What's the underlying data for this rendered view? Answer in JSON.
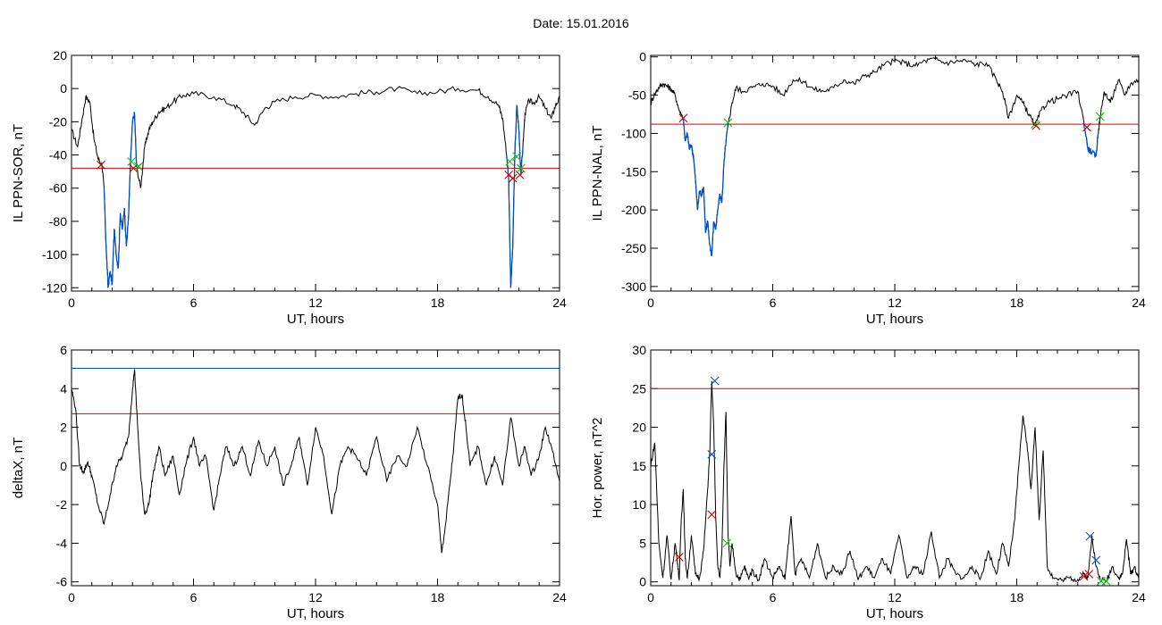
{
  "figure": {
    "date_label": "Date:",
    "date_value": "15.01.2016"
  },
  "colors": {
    "trace": "#000000",
    "threshold": "#e00000",
    "highlight": "#0050c8",
    "marker_red": "#d00000",
    "marker_green": "#10c010",
    "marker_blue": "#0050c8"
  },
  "chart_data": [
    {
      "id": "sor",
      "type": "line",
      "xlabel": "UT, hours",
      "ylabel": "IL PPN-SOR, nT",
      "xlim": [
        0,
        24
      ],
      "ylim": [
        -122,
        20
      ],
      "xticks": [
        0,
        6,
        12,
        18,
        24
      ],
      "yticks": [
        20,
        0,
        -20,
        -40,
        -60,
        -80,
        -100,
        -120
      ],
      "threshold": -48,
      "series": {
        "x": [
          0,
          0.3,
          0.5,
          0.7,
          0.9,
          1.1,
          1.3,
          1.5,
          1.6,
          1.7,
          1.8,
          1.9,
          2.0,
          2.1,
          2.2,
          2.3,
          2.4,
          2.5,
          2.6,
          2.7,
          2.8,
          2.9,
          3.0,
          3.1,
          3.2,
          3.4,
          3.6,
          3.8,
          4.0,
          4.3,
          4.6,
          5.0,
          5.5,
          6.0,
          7.0,
          8.0,
          8.5,
          9.0,
          9.5,
          10.0,
          11.0,
          12.0,
          13.0,
          14.0,
          15.0,
          16.0,
          17.0,
          18.0,
          19.0,
          20.0,
          20.5,
          21.0,
          21.2,
          21.4,
          21.5,
          21.6,
          21.7,
          21.8,
          21.9,
          22.0,
          22.1,
          22.2,
          22.3,
          22.5,
          22.7,
          23.0,
          23.3,
          23.6,
          23.8,
          24.0
        ],
        "y": [
          -25,
          -35,
          -20,
          -5,
          -8,
          -30,
          -42,
          -46,
          -60,
          -95,
          -120,
          -110,
          -118,
          -85,
          -100,
          -108,
          -75,
          -85,
          -72,
          -95,
          -78,
          -45,
          -20,
          -15,
          -47,
          -60,
          -35,
          -25,
          -20,
          -14,
          -12,
          -8,
          -4,
          -3,
          -5,
          -10,
          -15,
          -22,
          -12,
          -8,
          -5,
          -4,
          -5,
          -3,
          -2,
          0,
          -3,
          -2,
          0,
          -1,
          -5,
          -10,
          -18,
          -40,
          -55,
          -120,
          -95,
          -40,
          -10,
          -25,
          -52,
          -35,
          -15,
          -7,
          -9,
          -5,
          -12,
          -18,
          -10,
          -6
        ],
        "highlight_ranges": [
          [
            1.6,
            3.2
          ],
          [
            21.4,
            22.2
          ]
        ]
      },
      "markers": [
        {
          "x": 1.45,
          "y": -46,
          "color": "red"
        },
        {
          "x": 2.95,
          "y": -44,
          "color": "green"
        },
        {
          "x": 3.05,
          "y": -48,
          "color": "red"
        },
        {
          "x": 3.3,
          "y": -47,
          "color": "green"
        },
        {
          "x": 21.5,
          "y": -52,
          "color": "red"
        },
        {
          "x": 21.55,
          "y": -44,
          "color": "green"
        },
        {
          "x": 21.7,
          "y": -54,
          "color": "red"
        },
        {
          "x": 21.9,
          "y": -41,
          "color": "green"
        },
        {
          "x": 22.05,
          "y": -52,
          "color": "red"
        },
        {
          "x": 22.1,
          "y": -48,
          "color": "green"
        }
      ]
    },
    {
      "id": "nal",
      "type": "line",
      "xlabel": "UT, hours",
      "ylabel": "IL PPN-NAL, nT",
      "xlim": [
        0,
        24
      ],
      "ylim": [
        -306,
        2
      ],
      "xticks": [
        0,
        6,
        12,
        18,
        24
      ],
      "yticks": [
        0,
        -50,
        -100,
        -150,
        -200,
        -250,
        -300
      ],
      "threshold": -88,
      "series": {
        "x": [
          0,
          0.2,
          0.4,
          0.6,
          0.8,
          1.0,
          1.2,
          1.4,
          1.6,
          1.7,
          1.8,
          1.9,
          2.0,
          2.1,
          2.2,
          2.3,
          2.4,
          2.5,
          2.6,
          2.7,
          2.8,
          2.9,
          3.0,
          3.1,
          3.2,
          3.3,
          3.4,
          3.5,
          3.6,
          3.7,
          3.8,
          4.0,
          4.2,
          4.5,
          5.0,
          5.5,
          6.0,
          6.5,
          7.0,
          7.5,
          8.0,
          8.5,
          9.0,
          9.5,
          10.0,
          10.5,
          11.0,
          11.5,
          12.0,
          12.5,
          13.0,
          13.5,
          14.0,
          14.5,
          15.0,
          15.5,
          16.0,
          16.5,
          17.0,
          17.3,
          17.6,
          18.0,
          18.3,
          18.6,
          18.9,
          19.2,
          19.5,
          20.0,
          20.5,
          21.0,
          21.3,
          21.5,
          21.7,
          21.9,
          22.0,
          22.1,
          22.3,
          22.6,
          23.0,
          23.3,
          23.6,
          24.0
        ],
        "y": [
          -60,
          -48,
          -40,
          -35,
          -38,
          -42,
          -50,
          -70,
          -80,
          -110,
          -100,
          -120,
          -115,
          -130,
          -160,
          -200,
          -175,
          -180,
          -170,
          -230,
          -215,
          -245,
          -260,
          -215,
          -225,
          -200,
          -180,
          -190,
          -140,
          -110,
          -90,
          -60,
          -40,
          -45,
          -40,
          -35,
          -38,
          -50,
          -30,
          -32,
          -42,
          -45,
          -40,
          -30,
          -35,
          -25,
          -20,
          -10,
          -5,
          -8,
          -12,
          -5,
          -3,
          -8,
          -6,
          -5,
          -10,
          -8,
          -30,
          -45,
          -80,
          -50,
          -60,
          -75,
          -90,
          -70,
          -60,
          -55,
          -50,
          -45,
          -85,
          -120,
          -125,
          -130,
          -100,
          -80,
          -45,
          -60,
          -30,
          -50,
          -35,
          -30
        ],
        "highlight_ranges": [
          [
            1.6,
            3.8
          ],
          [
            21.3,
            22.0
          ]
        ]
      },
      "markers": [
        {
          "x": 1.6,
          "y": -80,
          "color": "red"
        },
        {
          "x": 3.8,
          "y": -86,
          "color": "green"
        },
        {
          "x": 18.9,
          "y": -88,
          "color": "green"
        },
        {
          "x": 18.95,
          "y": -90,
          "color": "red"
        },
        {
          "x": 21.45,
          "y": -92,
          "color": "red"
        },
        {
          "x": 22.1,
          "y": -78,
          "color": "green"
        }
      ]
    },
    {
      "id": "deltax",
      "type": "line",
      "xlabel": "UT, hours",
      "ylabel": "deltaX, nT",
      "xlim": [
        0,
        24
      ],
      "ylim": [
        -6.2,
        6
      ],
      "xticks": [
        0,
        6,
        12,
        18,
        24
      ],
      "yticks": [
        6,
        4,
        2,
        0,
        -2,
        -4,
        -6
      ],
      "threshold": 2.7,
      "threshold2": 5.05,
      "series": {
        "x": [
          0,
          0.2,
          0.4,
          0.6,
          0.8,
          1.0,
          1.3,
          1.6,
          1.9,
          2.2,
          2.5,
          2.8,
          3.0,
          3.1,
          3.2,
          3.4,
          3.6,
          3.8,
          4.0,
          4.3,
          4.6,
          5.0,
          5.3,
          5.6,
          6.0,
          6.3,
          6.6,
          7.0,
          7.3,
          7.6,
          8.0,
          8.4,
          8.8,
          9.2,
          9.6,
          10.0,
          10.4,
          10.8,
          11.2,
          11.6,
          12.0,
          12.4,
          12.8,
          13.2,
          13.6,
          14.0,
          14.5,
          15.0,
          15.5,
          16.0,
          16.5,
          17.0,
          17.5,
          18.0,
          18.2,
          18.4,
          18.6,
          18.8,
          19.0,
          19.2,
          19.4,
          19.6,
          20.0,
          20.4,
          20.8,
          21.2,
          21.6,
          22.0,
          22.3,
          22.6,
          23.0,
          23.3,
          23.6,
          24.0
        ],
        "y": [
          4,
          3,
          0,
          -0.3,
          0.2,
          -0.5,
          -2,
          -3,
          -1.5,
          0,
          0.5,
          1.5,
          4,
          5,
          3,
          -0.5,
          -2.5,
          -2,
          -0.5,
          1,
          -0.5,
          0.5,
          -1.5,
          0,
          1.5,
          0,
          0.5,
          -2.3,
          -0.5,
          1,
          0,
          1,
          -0.5,
          1.3,
          0,
          1,
          -1,
          0,
          1.5,
          -1,
          2,
          0.5,
          -2.5,
          0,
          1,
          0.5,
          -0.5,
          1.5,
          -0.8,
          0.5,
          0,
          2,
          0,
          -2,
          -4.5,
          -3,
          -1,
          1,
          3.5,
          3.7,
          2,
          0,
          1,
          -1,
          0.5,
          -1,
          2.5,
          0,
          1,
          -0.5,
          0.5,
          2,
          1,
          -0.8
        ],
        "highlight_ranges": []
      },
      "markers": []
    },
    {
      "id": "power",
      "type": "line",
      "xlabel": "UT, hours",
      "ylabel": "Hor. power, nT^2",
      "xlim": [
        0,
        24
      ],
      "ylim": [
        -0.5,
        30
      ],
      "xticks": [
        0,
        6,
        12,
        18,
        24
      ],
      "yticks": [
        30,
        25,
        20,
        15,
        10,
        5,
        0
      ],
      "threshold": 25,
      "series": {
        "x": [
          0,
          0.2,
          0.4,
          0.6,
          0.8,
          1.0,
          1.2,
          1.3,
          1.4,
          1.5,
          1.6,
          1.7,
          1.8,
          2.0,
          2.2,
          2.4,
          2.6,
          2.8,
          2.9,
          3.0,
          3.1,
          3.2,
          3.3,
          3.4,
          3.5,
          3.6,
          3.7,
          3.8,
          3.9,
          4.0,
          4.2,
          4.4,
          4.6,
          4.8,
          5.0,
          5.3,
          5.6,
          6.0,
          6.3,
          6.6,
          6.9,
          7.1,
          7.4,
          7.8,
          8.2,
          8.6,
          9.0,
          9.4,
          9.8,
          10.2,
          10.6,
          11.0,
          11.4,
          11.8,
          12.2,
          12.6,
          13.0,
          13.4,
          13.8,
          14.2,
          14.6,
          15.0,
          15.4,
          15.8,
          16.2,
          16.6,
          17.0,
          17.3,
          17.6,
          17.9,
          18.1,
          18.3,
          18.5,
          18.7,
          18.9,
          19.1,
          19.3,
          19.5,
          19.8,
          20.2,
          20.6,
          21.0,
          21.3,
          21.5,
          21.7,
          21.9,
          22.1,
          22.4,
          22.7,
          23.0,
          23.2,
          23.4,
          23.6,
          23.8,
          24.0
        ],
        "y": [
          15,
          18,
          5,
          0.5,
          6,
          0.3,
          5,
          3,
          0.2,
          8,
          12,
          3,
          0.5,
          6,
          1,
          0.5,
          4,
          12,
          16.5,
          26,
          20,
          8,
          2,
          0.5,
          4,
          15,
          22,
          6,
          2,
          5,
          1,
          0.3,
          2,
          0.5,
          1.5,
          0.2,
          3,
          0.5,
          2,
          0.3,
          8.5,
          1,
          3,
          0.5,
          5,
          0.5,
          2,
          1,
          4,
          0.3,
          2,
          0.5,
          3,
          1,
          6,
          0.5,
          2,
          1,
          6.5,
          0.5,
          3,
          1,
          0.5,
          2,
          0.3,
          4,
          1,
          5,
          2,
          8,
          15,
          21.5,
          18,
          12,
          20,
          8,
          17,
          2,
          0.5,
          0.2,
          0.5,
          0.3,
          1,
          0.5,
          6,
          2,
          0.3,
          0.1,
          2,
          0.5,
          1,
          5.5,
          1,
          2,
          0.3
        ],
        "highlight_ranges": []
      },
      "markers": [
        {
          "x": 1.4,
          "y": 3.2,
          "color": "red"
        },
        {
          "x": 3.0,
          "y": 8.7,
          "color": "red"
        },
        {
          "x": 3.0,
          "y": 16.5,
          "color": "blue"
        },
        {
          "x": 3.15,
          "y": 26,
          "color": "blue"
        },
        {
          "x": 3.75,
          "y": 5,
          "color": "green"
        },
        {
          "x": 21.3,
          "y": 0.7,
          "color": "red"
        },
        {
          "x": 21.55,
          "y": 1,
          "color": "red"
        },
        {
          "x": 21.6,
          "y": 5.9,
          "color": "blue"
        },
        {
          "x": 21.9,
          "y": 2.8,
          "color": "blue"
        },
        {
          "x": 22.15,
          "y": 0.1,
          "color": "green"
        },
        {
          "x": 22.4,
          "y": 0.1,
          "color": "green"
        }
      ]
    }
  ]
}
